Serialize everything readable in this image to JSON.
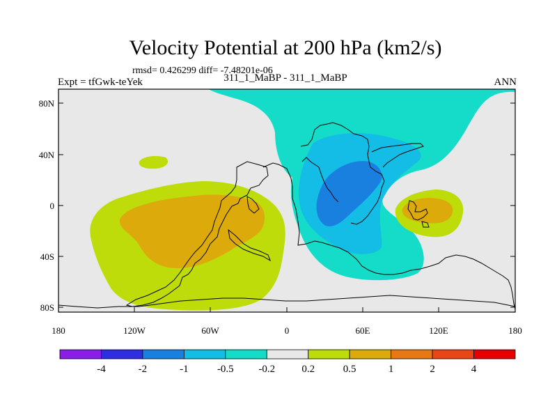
{
  "header": {
    "title": "Velocity Potential at 200 hPa (km2/s)",
    "stats": "rmsd= 0.426299 diff= -7.48201e-06",
    "experiment": "Expt = tfGwk-teYek",
    "cases": "311_1_MaBP - 311_1_MaBP",
    "season": "ANN"
  },
  "axes": {
    "x_ticks": [
      "180",
      "120W",
      "60W",
      "0",
      "60E",
      "120E",
      "180"
    ],
    "y_ticks": [
      "80N",
      "40N",
      "0",
      "40S",
      "80S"
    ]
  },
  "colorbar": {
    "labels": [
      "-4",
      "-2",
      "-1",
      "-0.5",
      "-0.2",
      "0.2",
      "0.5",
      "1",
      "2",
      "4"
    ],
    "colors": [
      "#8a1ee6",
      "#2e2ee0",
      "#1a80e0",
      "#14bde6",
      "#14dcc8",
      "#e8e8e8",
      "#bedc0a",
      "#dcaa0a",
      "#e87814",
      "#e84614",
      "#e60000"
    ]
  },
  "fills": {
    "background": "#e8e8e8",
    "cyan": "#14dcc8",
    "lightblue": "#14bde6",
    "blue": "#1a80e0",
    "yellowgreen": "#bedc0a",
    "orange": "#dcaa0a"
  }
}
